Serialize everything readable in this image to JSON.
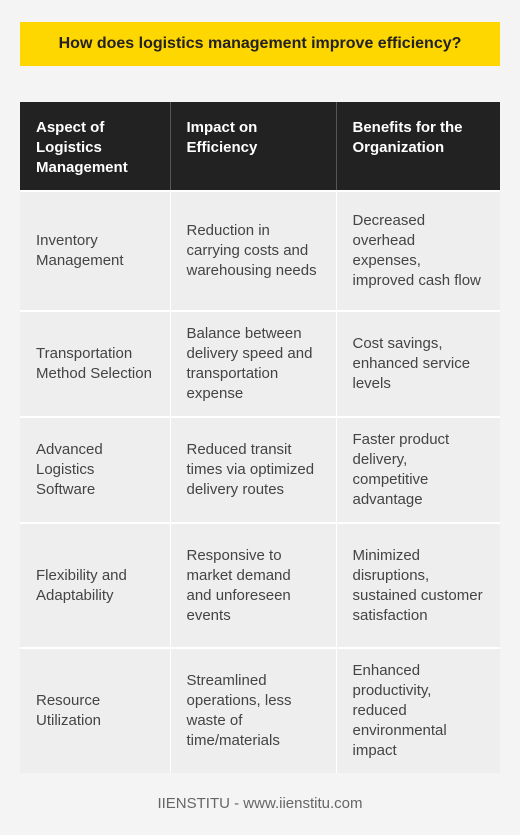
{
  "title": "How does logistics management improve efficiency?",
  "table": {
    "headers": [
      "Aspect of Logistics Management",
      "Impact on Efficiency",
      "Benefits for the Organization"
    ],
    "rows": [
      [
        "Inventory Management",
        "Reduction in carrying costs and warehousing needs",
        "Decreased overhead expenses, improved cash flow"
      ],
      [
        "Transportation Method Selection",
        "Balance between delivery speed and transportation expense",
        "Cost savings, enhanced service levels"
      ],
      [
        "Advanced Logistics Software",
        "Reduced transit times via optimized delivery routes",
        "Faster product delivery, competitive advantage"
      ],
      [
        "Flexibility and Adaptability",
        "Responsive to market demand and unforeseen events",
        "Minimized disruptions, sustained customer satisfaction"
      ],
      [
        "Resource Utilization",
        "Streamlined operations, less waste of time/materials",
        "Enhanced productivity, reduced environmental impact"
      ]
    ]
  },
  "footer": "IIENSTITU - www.iienstitu.com"
}
